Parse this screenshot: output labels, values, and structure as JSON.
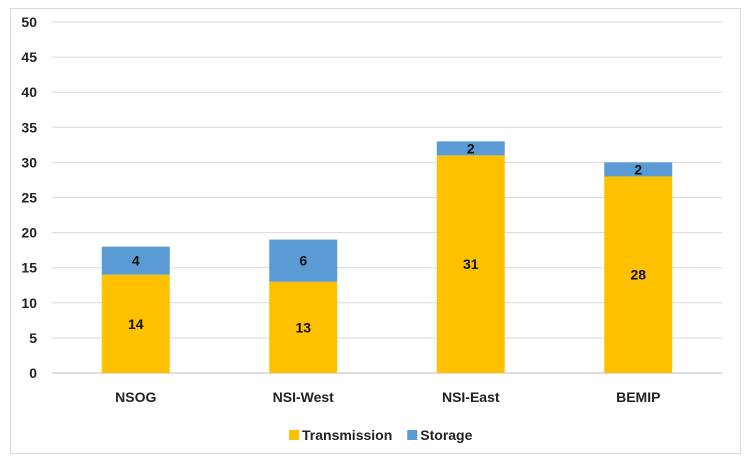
{
  "chart_data": {
    "type": "bar",
    "stacked": true,
    "categories": [
      "NSOG",
      "NSI-West",
      "NSI-East",
      "BEMIP"
    ],
    "series": [
      {
        "name": "Transmission",
        "values": [
          14,
          13,
          31,
          28
        ],
        "color": "#FFC000"
      },
      {
        "name": "Storage",
        "values": [
          4,
          6,
          2,
          2
        ],
        "color": "#5B9BD5"
      }
    ],
    "title": "",
    "xlabel": "",
    "ylabel": "",
    "ylim": [
      0,
      50
    ],
    "yticks": [
      0,
      5,
      10,
      15,
      20,
      25,
      30,
      35,
      40,
      45,
      50
    ],
    "grid": true,
    "legend": "bottom-center",
    "data_labels": true
  }
}
